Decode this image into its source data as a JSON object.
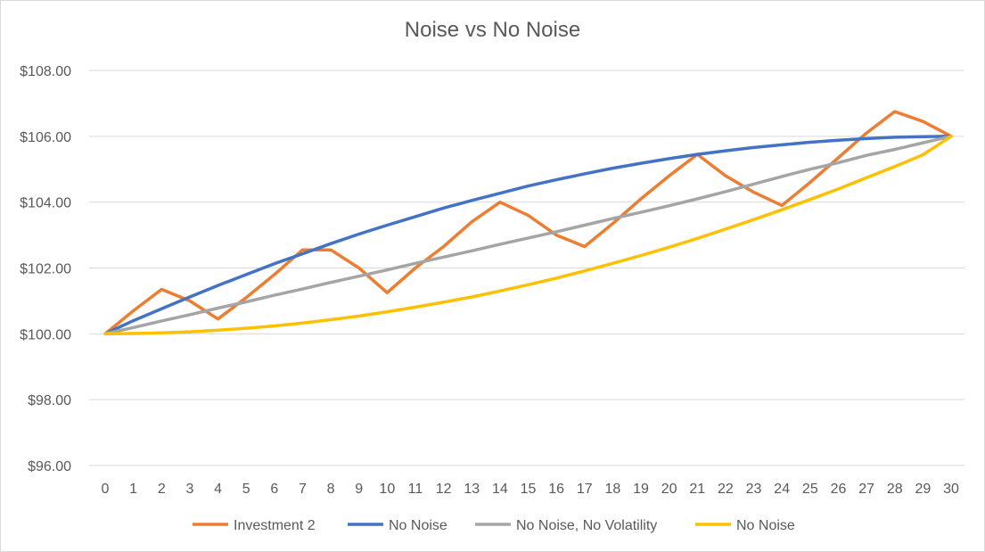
{
  "chart_data": {
    "type": "line",
    "title": "Noise vs No Noise",
    "xlabel": "",
    "ylabel": "",
    "x": [
      0,
      1,
      2,
      3,
      4,
      5,
      6,
      7,
      8,
      9,
      10,
      11,
      12,
      13,
      14,
      15,
      16,
      17,
      18,
      19,
      20,
      21,
      22,
      23,
      24,
      25,
      26,
      27,
      28,
      29,
      30
    ],
    "ylim": [
      96,
      108
    ],
    "yticks": [
      96,
      98,
      100,
      102,
      104,
      106,
      108
    ],
    "ytick_labels": [
      "$96.00",
      "$98.00",
      "$100.00",
      "$102.00",
      "$104.00",
      "$106.00",
      "$108.00"
    ],
    "grid": true,
    "legend_position": "bottom",
    "series": [
      {
        "name": "Investment 2",
        "color": "#ED7D31",
        "values": [
          100.0,
          100.7,
          101.35,
          101.0,
          100.45,
          101.1,
          101.8,
          102.55,
          102.55,
          102.0,
          101.25,
          102.0,
          102.65,
          103.4,
          104.0,
          103.6,
          103.0,
          102.65,
          103.35,
          104.1,
          104.8,
          105.45,
          104.8,
          104.3,
          103.9,
          104.6,
          105.35,
          106.1,
          106.75,
          106.45,
          106.0
        ]
      },
      {
        "name": "No Noise",
        "color": "#4472C4",
        "values": [
          100.0,
          100.4,
          100.76,
          101.12,
          101.47,
          101.8,
          102.13,
          102.43,
          102.74,
          103.03,
          103.3,
          103.56,
          103.82,
          104.05,
          104.27,
          104.49,
          104.68,
          104.86,
          105.03,
          105.18,
          105.32,
          105.45,
          105.56,
          105.66,
          105.74,
          105.82,
          105.88,
          105.93,
          105.97,
          105.99,
          106.0
        ]
      },
      {
        "name": "No Noise, No Volatility",
        "color": "#A5A5A5",
        "values": [
          100.0,
          100.19,
          100.39,
          100.58,
          100.78,
          100.97,
          101.17,
          101.36,
          101.56,
          101.75,
          101.94,
          102.14,
          102.33,
          102.52,
          102.72,
          102.91,
          103.1,
          103.3,
          103.5,
          103.69,
          103.89,
          104.1,
          104.32,
          104.55,
          104.78,
          105.0,
          105.2,
          105.42,
          105.6,
          105.8,
          106.0
        ]
      },
      {
        "name": "No Noise",
        "color": "#FFC000",
        "values": [
          100.0,
          100.01,
          100.03,
          100.06,
          100.11,
          100.17,
          100.24,
          100.33,
          100.43,
          100.54,
          100.67,
          100.81,
          100.96,
          101.12,
          101.3,
          101.49,
          101.69,
          101.91,
          102.14,
          102.38,
          102.63,
          102.9,
          103.18,
          103.47,
          103.77,
          104.08,
          104.4,
          104.74,
          105.08,
          105.44,
          106.0
        ]
      }
    ]
  }
}
